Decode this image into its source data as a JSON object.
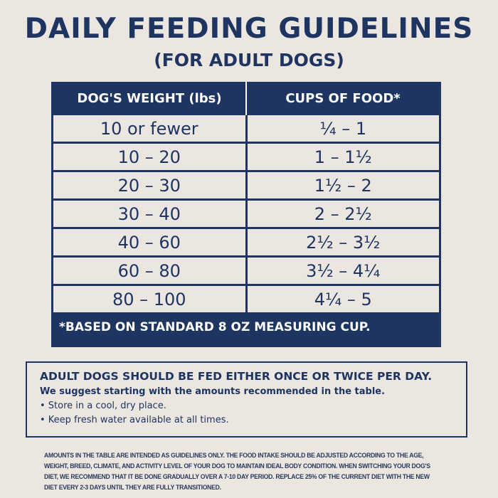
{
  "title": "DAILY FEEDING GUIDELINES",
  "subtitle": "(FOR ADULT DOGS)",
  "table": {
    "headers": [
      "DOG'S WEIGHT (lbs)",
      "CUPS OF FOOD*"
    ],
    "rows": [
      [
        "10 or fewer",
        "¼ – 1"
      ],
      [
        "10 – 20",
        "1 – 1½"
      ],
      [
        "20 – 30",
        "1½ – 2"
      ],
      [
        "30 – 40",
        "2 – 2½"
      ],
      [
        "40 – 60",
        "2½ – 3½"
      ],
      [
        "60 – 80",
        "3½ – 4¼"
      ],
      [
        "80 – 100",
        "4¼ – 5"
      ]
    ],
    "footnote": "*BASED ON STANDARD 8 OZ MEASURING CUP."
  },
  "info": {
    "heading": "ADULT DOGS SHOULD BE FED EITHER ONCE OR TWICE PER DAY.",
    "suggestion": "We suggest starting with the amounts recommended in the table.",
    "bullets": [
      "• Store in a cool, dry place.",
      "• Keep fresh water available at all times."
    ]
  },
  "fine_print": "AMOUNTS IN THE TABLE ARE INTENDED AS GUIDELINES ONLY. THE FOOD INTAKE SHOULD BE ADJUSTED ACCORDING TO THE AGE, WEIGHT, BREED, CLIMATE, AND ACTIVITY LEVEL OF YOUR DOG TO MAINTAIN IDEAL BODY CONDITION. WHEN SWITCHING YOUR DOG'S DIET, WE RECOMMEND THAT IT BE DONE GRADUALLY OVER A 7-10 DAY PERIOD. REPLACE 25% OF THE CURRENT DIET WITH THE NEW DIET EVERY 2-3 DAYS UNTIL THEY ARE FULLY TRANSITIONED.",
  "colors": {
    "navy": "#1e3461",
    "background": "#ece6e0"
  }
}
